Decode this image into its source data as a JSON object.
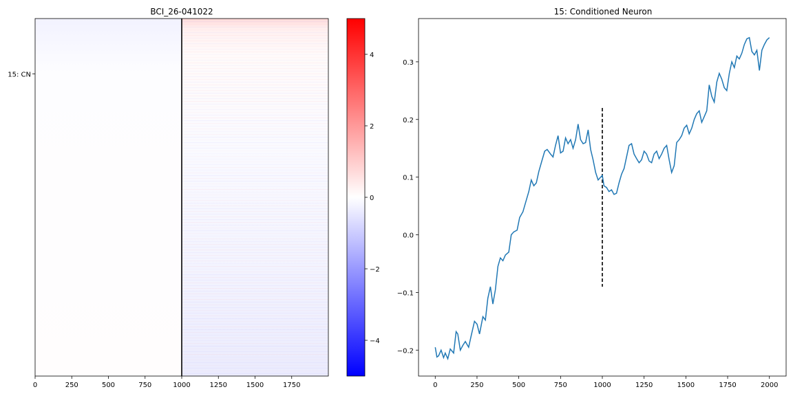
{
  "chart_data": [
    {
      "type": "heatmap",
      "title": "BCI_26-041022",
      "xlabel": "",
      "ylabel": "",
      "xlim": [
        0,
        2000
      ],
      "x_ticks": [
        0,
        250,
        500,
        750,
        1000,
        1250,
        1500,
        1750
      ],
      "y_tick_labels": [
        "15: CN"
      ],
      "marked_row_fraction": 0.155,
      "vertical_line_x": 1000,
      "colormap": "bwr",
      "colors": {
        "low": "#0000ff",
        "mid": "#ffffff",
        "high": "#ff0000",
        "line": "#000000"
      },
      "colorbar": {
        "range": [
          -5,
          5
        ],
        "ticks": [
          -4,
          -2,
          0,
          2,
          4
        ]
      },
      "pattern": "near-zero values; faint red band in top rows after 1000; faint blue tint in lower rows after 1000"
    },
    {
      "type": "line",
      "title": "15: Conditioned Neuron",
      "xlabel": "",
      "ylabel": "",
      "xlim": [
        -100,
        2100
      ],
      "ylim": [
        -0.245,
        0.375
      ],
      "x_ticks": [
        0,
        250,
        500,
        750,
        1000,
        1250,
        1500,
        1750,
        2000
      ],
      "y_ticks": [
        -0.2,
        -0.1,
        0.0,
        0.1,
        0.2,
        0.3
      ],
      "line_color": "#1f77b4",
      "vline": {
        "x": 1000,
        "y_range": [
          -0.09,
          0.22
        ],
        "style": "dashed",
        "color": "#000000"
      },
      "series": [
        {
          "x": [
            0,
            10,
            20,
            35,
            50,
            60,
            75,
            90,
            110,
            125,
            135,
            150,
            165,
            180,
            200,
            215,
            235,
            250,
            265,
            285,
            300,
            315,
            330,
            345,
            360,
            375,
            390,
            405,
            420,
            440,
            455,
            470,
            490,
            505,
            525,
            540,
            560,
            575,
            590,
            605,
            620,
            640,
            655,
            670,
            690,
            705,
            720,
            735,
            750,
            765,
            780,
            795,
            810,
            825,
            840,
            855,
            870,
            885,
            900,
            915,
            930,
            945,
            960,
            975,
            990,
            1000,
            1010,
            1025,
            1040,
            1055,
            1070,
            1085,
            1100,
            1115,
            1130,
            1145,
            1160,
            1175,
            1190,
            1205,
            1220,
            1235,
            1250,
            1265,
            1280,
            1295,
            1310,
            1325,
            1340,
            1355,
            1370,
            1385,
            1400,
            1415,
            1430,
            1445,
            1460,
            1475,
            1490,
            1505,
            1520,
            1535,
            1550,
            1565,
            1580,
            1595,
            1610,
            1625,
            1640,
            1655,
            1670,
            1685,
            1700,
            1715,
            1730,
            1745,
            1760,
            1775,
            1790,
            1805,
            1820,
            1835,
            1850,
            1865,
            1880,
            1895,
            1910,
            1925,
            1940,
            1955,
            1970,
            1985,
            2000
          ],
          "values": [
            -0.195,
            -0.212,
            -0.21,
            -0.2,
            -0.213,
            -0.205,
            -0.215,
            -0.198,
            -0.205,
            -0.168,
            -0.172,
            -0.2,
            -0.192,
            -0.185,
            -0.195,
            -0.175,
            -0.15,
            -0.155,
            -0.172,
            -0.142,
            -0.148,
            -0.11,
            -0.09,
            -0.12,
            -0.095,
            -0.055,
            -0.04,
            -0.045,
            -0.035,
            -0.03,
            0.0,
            0.005,
            0.008,
            0.03,
            0.04,
            0.055,
            0.075,
            0.095,
            0.085,
            0.09,
            0.11,
            0.13,
            0.145,
            0.148,
            0.14,
            0.135,
            0.155,
            0.172,
            0.142,
            0.145,
            0.168,
            0.158,
            0.165,
            0.15,
            0.165,
            0.192,
            0.165,
            0.158,
            0.16,
            0.182,
            0.148,
            0.13,
            0.108,
            0.095,
            0.1,
            0.103,
            0.085,
            0.082,
            0.075,
            0.078,
            0.07,
            0.072,
            0.09,
            0.105,
            0.115,
            0.135,
            0.155,
            0.158,
            0.14,
            0.132,
            0.125,
            0.13,
            0.145,
            0.14,
            0.128,
            0.125,
            0.14,
            0.145,
            0.132,
            0.14,
            0.15,
            0.155,
            0.13,
            0.108,
            0.12,
            0.16,
            0.165,
            0.172,
            0.185,
            0.19,
            0.175,
            0.185,
            0.2,
            0.21,
            0.215,
            0.195,
            0.205,
            0.215,
            0.26,
            0.24,
            0.23,
            0.265,
            0.28,
            0.27,
            0.255,
            0.25,
            0.28,
            0.3,
            0.29,
            0.31,
            0.305,
            0.315,
            0.33,
            0.34,
            0.342,
            0.318,
            0.312,
            0.32,
            0.285,
            0.32,
            0.33,
            0.338,
            0.342
          ]
        }
      ]
    }
  ]
}
